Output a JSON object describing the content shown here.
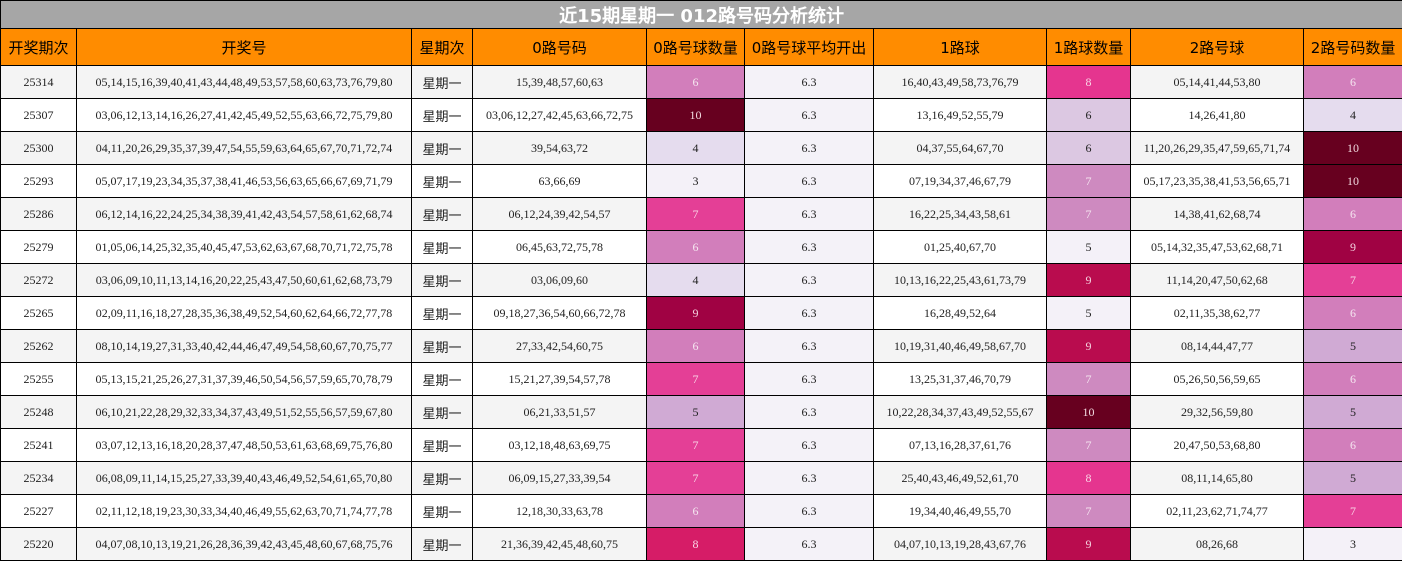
{
  "title": "近15期星期一 012路号码分析统计",
  "headers": [
    "开奖期次",
    "开奖号",
    "星期次",
    "0路号码",
    "0路号球数量",
    "0路号球平均开出",
    "1路球",
    "1路球数量",
    "2路号球",
    "2路号码数量"
  ],
  "rows": [
    {
      "issue": "25314",
      "numbers": "05,14,15,16,39,40,41,43,44,48,49,53,57,58,60,63,73,76,79,80",
      "weekday": "星期一",
      "r0": "15,39,48,57,60,63",
      "r0_count": "6",
      "r0_avg": "6.3",
      "r1": "16,40,43,49,58,73,76,79",
      "r1_count": "8",
      "r2": "05,14,41,44,53,80",
      "r2_count": "6",
      "c0": {
        "bg": "#d27ebb",
        "fg": "#f5e6f0"
      },
      "c1": {
        "bg": "#e5358f",
        "fg": "#f9d6e6"
      },
      "c2": {
        "bg": "#d27ebb",
        "fg": "#f5e6f0"
      }
    },
    {
      "issue": "25307",
      "numbers": "03,06,12,13,14,16,26,27,41,42,45,49,52,55,63,66,72,75,79,80",
      "weekday": "星期一",
      "r0": "03,06,12,27,42,45,63,66,72,75",
      "r0_count": "10",
      "r0_avg": "6.3",
      "r1": "13,16,49,52,55,79",
      "r1_count": "6",
      "r2": "14,26,41,80",
      "r2_count": "4",
      "c0": {
        "bg": "#67001f",
        "fg": "#f1d9df"
      },
      "c1": {
        "bg": "#dcc8e2",
        "fg": "#222"
      },
      "c2": {
        "bg": "#e5dcee",
        "fg": "#222"
      }
    },
    {
      "issue": "25300",
      "numbers": "04,11,20,26,29,35,37,39,47,54,55,59,63,64,65,67,70,71,72,74",
      "weekday": "星期一",
      "r0": "39,54,63,72",
      "r0_count": "4",
      "r0_avg": "6.3",
      "r1": "04,37,55,64,67,70",
      "r1_count": "6",
      "r2": "11,20,26,29,35,47,59,65,71,74",
      "r2_count": "10",
      "c0": {
        "bg": "#e5dcee",
        "fg": "#222"
      },
      "c1": {
        "bg": "#dcc8e2",
        "fg": "#222"
      },
      "c2": {
        "bg": "#67001f",
        "fg": "#f1d9df"
      }
    },
    {
      "issue": "25293",
      "numbers": "05,07,17,19,23,34,35,37,38,41,46,53,56,63,65,66,67,69,71,79",
      "weekday": "星期一",
      "r0": "63,66,69",
      "r0_count": "3",
      "r0_avg": "6.3",
      "r1": "07,19,34,37,46,67,79",
      "r1_count": "7",
      "r2": "05,17,23,35,38,41,53,56,65,71",
      "r2_count": "10",
      "c0": {
        "bg": "#f4f1f8",
        "fg": "#222"
      },
      "c1": {
        "bg": "#ce8ac0",
        "fg": "#f5e6f0"
      },
      "c2": {
        "bg": "#67001f",
        "fg": "#f1d9df"
      }
    },
    {
      "issue": "25286",
      "numbers": "06,12,14,16,22,24,25,34,38,39,41,42,43,54,57,58,61,62,68,74",
      "weekday": "星期一",
      "r0": "06,12,24,39,42,54,57",
      "r0_count": "7",
      "r0_avg": "6.3",
      "r1": "16,22,25,34,43,58,61",
      "r1_count": "7",
      "r2": "14,38,41,62,68,74",
      "r2_count": "6",
      "c0": {
        "bg": "#e43f96",
        "fg": "#f9d6e6"
      },
      "c1": {
        "bg": "#ce8ac0",
        "fg": "#f5e6f0"
      },
      "c2": {
        "bg": "#d27ebb",
        "fg": "#f5e6f0"
      }
    },
    {
      "issue": "25279",
      "numbers": "01,05,06,14,25,32,35,40,45,47,53,62,63,67,68,70,71,72,75,78",
      "weekday": "星期一",
      "r0": "06,45,63,72,75,78",
      "r0_count": "6",
      "r0_avg": "6.3",
      "r1": "01,25,40,67,70",
      "r1_count": "5",
      "r2": "05,14,32,35,47,53,62,68,71",
      "r2_count": "9",
      "c0": {
        "bg": "#d27ebb",
        "fg": "#f5e6f0"
      },
      "c1": {
        "bg": "#f4f1f8",
        "fg": "#222"
      },
      "c2": {
        "bg": "#a00243",
        "fg": "#f3d0dd"
      }
    },
    {
      "issue": "25272",
      "numbers": "03,06,09,10,11,13,14,16,20,22,25,43,47,50,60,61,62,68,73,79",
      "weekday": "星期一",
      "r0": "03,06,09,60",
      "r0_count": "4",
      "r0_avg": "6.3",
      "r1": "10,13,16,22,25,43,61,73,79",
      "r1_count": "9",
      "r2": "11,14,20,47,50,62,68",
      "r2_count": "7",
      "c0": {
        "bg": "#e5dcee",
        "fg": "#222"
      },
      "c1": {
        "bg": "#b90c4e",
        "fg": "#f3d0dd"
      },
      "c2": {
        "bg": "#e43f96",
        "fg": "#f9d6e6"
      }
    },
    {
      "issue": "25265",
      "numbers": "02,09,11,16,18,27,28,35,36,38,49,52,54,60,62,64,66,72,77,78",
      "weekday": "星期一",
      "r0": "09,18,27,36,54,60,66,72,78",
      "r0_count": "9",
      "r0_avg": "6.3",
      "r1": "16,28,49,52,64",
      "r1_count": "5",
      "r2": "02,11,35,38,62,77",
      "r2_count": "6",
      "c0": {
        "bg": "#a00243",
        "fg": "#f3d0dd"
      },
      "c1": {
        "bg": "#f4f1f8",
        "fg": "#222"
      },
      "c2": {
        "bg": "#d27ebb",
        "fg": "#f5e6f0"
      }
    },
    {
      "issue": "25262",
      "numbers": "08,10,14,19,27,31,33,40,42,44,46,47,49,54,58,60,67,70,75,77",
      "weekday": "星期一",
      "r0": "27,33,42,54,60,75",
      "r0_count": "6",
      "r0_avg": "6.3",
      "r1": "10,19,31,40,46,49,58,67,70",
      "r1_count": "9",
      "r2": "08,14,44,47,77",
      "r2_count": "5",
      "c0": {
        "bg": "#d27ebb",
        "fg": "#f5e6f0"
      },
      "c1": {
        "bg": "#b90c4e",
        "fg": "#f3d0dd"
      },
      "c2": {
        "bg": "#d0aad4",
        "fg": "#222"
      }
    },
    {
      "issue": "25255",
      "numbers": "05,13,15,21,25,26,27,31,37,39,46,50,54,56,57,59,65,70,78,79",
      "weekday": "星期一",
      "r0": "15,21,27,39,54,57,78",
      "r0_count": "7",
      "r0_avg": "6.3",
      "r1": "13,25,31,37,46,70,79",
      "r1_count": "7",
      "r2": "05,26,50,56,59,65",
      "r2_count": "6",
      "c0": {
        "bg": "#e43f96",
        "fg": "#f9d6e6"
      },
      "c1": {
        "bg": "#ce8ac0",
        "fg": "#f5e6f0"
      },
      "c2": {
        "bg": "#d27ebb",
        "fg": "#f5e6f0"
      }
    },
    {
      "issue": "25248",
      "numbers": "06,10,21,22,28,29,32,33,34,37,43,49,51,52,55,56,57,59,67,80",
      "weekday": "星期一",
      "r0": "06,21,33,51,57",
      "r0_count": "5",
      "r0_avg": "6.3",
      "r1": "10,22,28,34,37,43,49,52,55,67",
      "r1_count": "10",
      "r2": "29,32,56,59,80",
      "r2_count": "5",
      "c0": {
        "bg": "#d0aad4",
        "fg": "#222"
      },
      "c1": {
        "bg": "#67001f",
        "fg": "#f1d9df"
      },
      "c2": {
        "bg": "#d0aad4",
        "fg": "#222"
      }
    },
    {
      "issue": "25241",
      "numbers": "03,07,12,13,16,18,20,28,37,47,48,50,53,61,63,68,69,75,76,80",
      "weekday": "星期一",
      "r0": "03,12,18,48,63,69,75",
      "r0_count": "7",
      "r0_avg": "6.3",
      "r1": "07,13,16,28,37,61,76",
      "r1_count": "7",
      "r2": "20,47,50,53,68,80",
      "r2_count": "6",
      "c0": {
        "bg": "#e43f96",
        "fg": "#f9d6e6"
      },
      "c1": {
        "bg": "#ce8ac0",
        "fg": "#f5e6f0"
      },
      "c2": {
        "bg": "#d27ebb",
        "fg": "#f5e6f0"
      }
    },
    {
      "issue": "25234",
      "numbers": "06,08,09,11,14,15,25,27,33,39,40,43,46,49,52,54,61,65,70,80",
      "weekday": "星期一",
      "r0": "06,09,15,27,33,39,54",
      "r0_count": "7",
      "r0_avg": "6.3",
      "r1": "25,40,43,46,49,52,61,70",
      "r1_count": "8",
      "r2": "08,11,14,65,80",
      "r2_count": "5",
      "c0": {
        "bg": "#e43f96",
        "fg": "#f9d6e6"
      },
      "c1": {
        "bg": "#e5358f",
        "fg": "#f9d6e6"
      },
      "c2": {
        "bg": "#d0aad4",
        "fg": "#222"
      }
    },
    {
      "issue": "25227",
      "numbers": "02,11,12,18,19,23,30,33,34,40,46,49,55,62,63,70,71,74,77,78",
      "weekday": "星期一",
      "r0": "12,18,30,33,63,78",
      "r0_count": "6",
      "r0_avg": "6.3",
      "r1": "19,34,40,46,49,55,70",
      "r1_count": "7",
      "r2": "02,11,23,62,71,74,77",
      "r2_count": "7",
      "c0": {
        "bg": "#d27ebb",
        "fg": "#f5e6f0"
      },
      "c1": {
        "bg": "#ce8ac0",
        "fg": "#f5e6f0"
      },
      "c2": {
        "bg": "#e43f96",
        "fg": "#f9d6e6"
      }
    },
    {
      "issue": "25220",
      "numbers": "04,07,08,10,13,19,21,26,28,36,39,42,43,45,48,60,67,68,75,76",
      "weekday": "星期一",
      "r0": "21,36,39,42,45,48,60,75",
      "r0_count": "8",
      "r0_avg": "6.3",
      "r1": "04,07,10,13,19,28,43,67,76",
      "r1_count": "9",
      "r2": "08,26,68",
      "r2_count": "3",
      "c0": {
        "bg": "#d61c67",
        "fg": "#f9d6e6"
      },
      "c1": {
        "bg": "#b90c4e",
        "fg": "#f3d0dd"
      },
      "c2": {
        "bg": "#f4f1f8",
        "fg": "#222"
      }
    }
  ]
}
